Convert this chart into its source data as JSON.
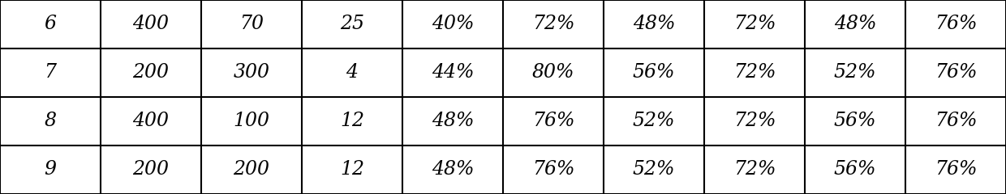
{
  "rows": [
    [
      "6",
      "400",
      "70",
      "25",
      "40%",
      "72%",
      "48%",
      "72%",
      "48%",
      "76%"
    ],
    [
      "7",
      "200",
      "300",
      "4",
      "44%",
      "80%",
      "56%",
      "72%",
      "52%",
      "76%"
    ],
    [
      "8",
      "400",
      "100",
      "12",
      "48%",
      "76%",
      "52%",
      "72%",
      "56%",
      "76%"
    ],
    [
      "9",
      "200",
      "200",
      "12",
      "48%",
      "76%",
      "52%",
      "72%",
      "56%",
      "76%"
    ]
  ],
  "n_cols": 10,
  "n_rows": 4,
  "bg_color": "#ffffff",
  "text_color": "#000000",
  "line_color": "#000000",
  "font_size": 17,
  "font_style": "italic",
  "font_family": "serif",
  "line_width": 1.5
}
